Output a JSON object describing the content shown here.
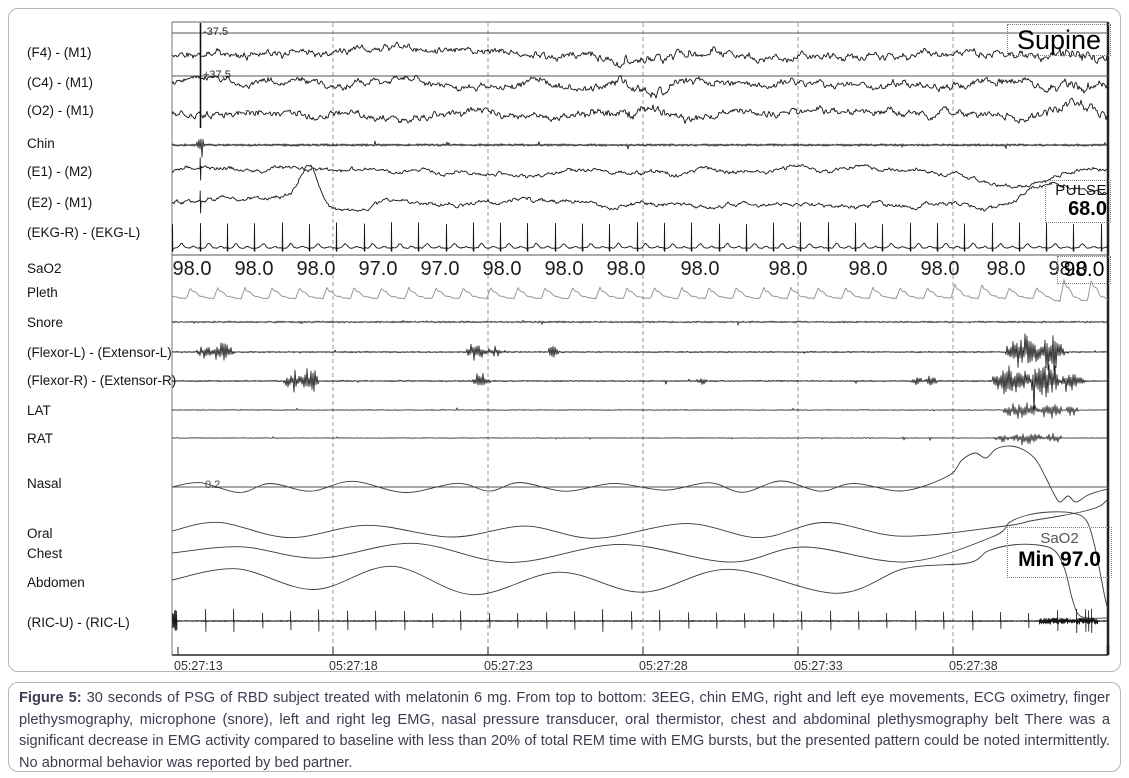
{
  "figure": {
    "caption_label": "Figure 5:",
    "caption_text": " 30 seconds of PSG of RBD subject treated with melatonin 6 mg. From top to bottom: 3EEG, chin EMG, right and left eye movements, ECG oximetry, finger plethysmography, microphone (snore), left and right leg EMG, nasal pressure transducer, oral thermistor, chest and abdominal plethysmography belt There was a significant decrease in EMG activity compared to baseline with less than 20% of total REM time with EMG bursts, but the presented pattern could be noted intermittently. No abnormal behavior was reported by bed partner."
  },
  "plot": {
    "position_label": "Supine",
    "pulse": {
      "label": "PULSE",
      "value": "68.0"
    },
    "sao2_current": "98.0",
    "sao2_min": {
      "label": "SaO2",
      "value": "Min 97.0"
    },
    "eeg_scale_top": "-37.5",
    "eeg_scale_bottom": "+37.5",
    "nasal_ref": "0.2",
    "channel_labels": [
      "(F4) - (M1)",
      "(C4) - (M1)",
      "(O2) - (M1)",
      "Chin",
      "(E1) - (M2)",
      "(E2) - (M1)",
      "(EKG-R) - (EKG-L)",
      "SaO2",
      "Pleth",
      "Snore",
      "(Flexor-L) - (Extensor-L)",
      "(Flexor-R) - (Extensor-R)",
      "LAT",
      "RAT",
      "Nasal",
      "Oral",
      "Chest",
      "Abdomen",
      "(RIC-U) - (RIC-L)"
    ],
    "sao2_values": [
      "98.0",
      "98.0",
      "98.0",
      "97.0",
      "97.0",
      "98.0",
      "98.0",
      "98.0",
      "98.0",
      "98.0",
      "98.0",
      "98.0",
      "98.0",
      "98.0"
    ],
    "time_ticks": [
      "05:27:13",
      "05:27:18",
      "05:27:23",
      "05:27:28",
      "05:27:33",
      "05:27:38"
    ]
  },
  "chart_data": {
    "type": "line",
    "title": "30-second polysomnography (PSG) epoch of RBD subject treated with melatonin 6 mg",
    "x_tick_labels": [
      "05:27:13",
      "05:27:18",
      "05:27:23",
      "05:27:28",
      "05:27:33",
      "05:27:38"
    ],
    "x_span_seconds": 30,
    "grid": "vertical dashed gridlines at 5-second ticks",
    "legend_position": "none",
    "channels": [
      "(F4) - (M1)",
      "(C4) - (M1)",
      "(O2) - (M1)",
      "Chin",
      "(E1) - (M2)",
      "(E2) - (M1)",
      "(EKG-R) - (EKG-L)",
      "SaO2",
      "Pleth",
      "Snore",
      "(Flexor-L) - (Extensor-L)",
      "(Flexor-R) - (Extensor-R)",
      "LAT",
      "RAT",
      "Nasal",
      "Oral",
      "Chest",
      "Abdomen",
      "(RIC-U) - (RIC-L)"
    ],
    "series": [
      {
        "name": "SaO2 (%)",
        "x_interval_seconds": 2,
        "values": [
          98.0,
          98.0,
          98.0,
          97.0,
          97.0,
          98.0,
          98.0,
          98.0,
          98.0,
          98.0,
          98.0,
          98.0,
          98.0,
          98.0
        ]
      },
      {
        "name": "Pulse (bpm)",
        "values": [
          68.0
        ]
      }
    ],
    "annotations": {
      "body_position": "Supine",
      "pulse_bpm": 68.0,
      "sao2_current_pct": 98.0,
      "sao2_min_pct": 97.0,
      "eeg_scale_uv": [
        -37.5,
        37.5
      ],
      "nasal_reference": 0.2,
      "events": "EMG bursts on Flexor-L, Flexor-R, LAT and RAT channels, largest cluster near 05:27:39; calibration spike near 05:27:14"
    }
  },
  "colors": {
    "trace": "#161616",
    "pleth": "#989898",
    "respiration": "#3a3a3a",
    "grid": "#999999",
    "caption_text": "#3c3c52",
    "card_border": "#b5b5b5"
  }
}
